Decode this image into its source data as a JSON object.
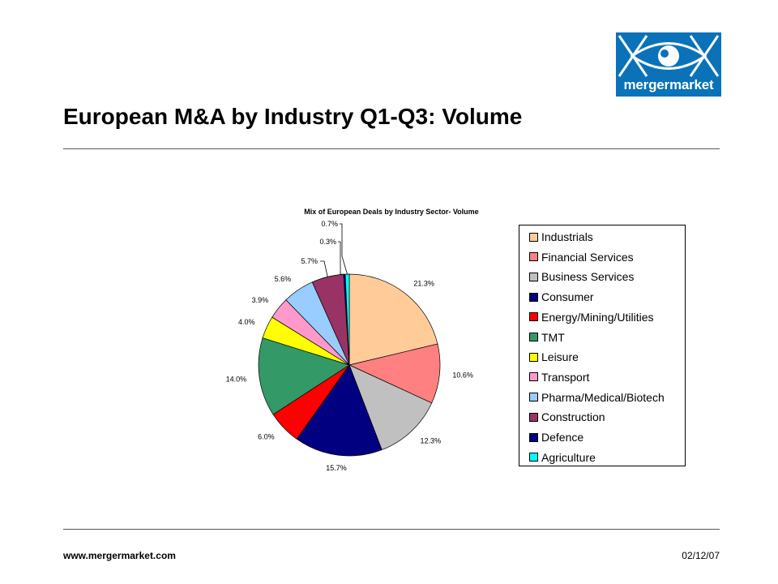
{
  "header": {
    "title": "European M&A by Industry Q1-Q3: Volume",
    "logo_text": "mergermarket"
  },
  "footer": {
    "url": "www.mergermarket.com",
    "date": "02/12/07"
  },
  "chart_data": {
    "type": "pie",
    "title": "Mix of European Deals by Industry Sector- Volume",
    "legend_position": "right",
    "categories": [
      "Industrials",
      "Financial Services",
      "Business Services",
      "Consumer",
      "Energy/Mining/Utilities",
      "TMT",
      "Leisure",
      "Transport",
      "Pharma/Medical/Biotech",
      "Construction",
      "Defence",
      "Agriculture"
    ],
    "values": [
      21.3,
      10.6,
      12.3,
      15.7,
      6.0,
      14.0,
      4.0,
      3.9,
      5.6,
      5.7,
      0.3,
      0.7
    ],
    "labels": [
      "21.3%",
      "10.6%",
      "12.3%",
      "15.7%",
      "6.0%",
      "14.0%",
      "4.0%",
      "3.9%",
      "5.6%",
      "5.7%",
      "0.3%",
      "0.7%"
    ],
    "colors": [
      "#ffcc99",
      "#ff8080",
      "#c0c0c0",
      "#000080",
      "#ff0000",
      "#339966",
      "#ffff00",
      "#ff99cc",
      "#99ccff",
      "#993366",
      "#000080",
      "#00ffff"
    ]
  }
}
